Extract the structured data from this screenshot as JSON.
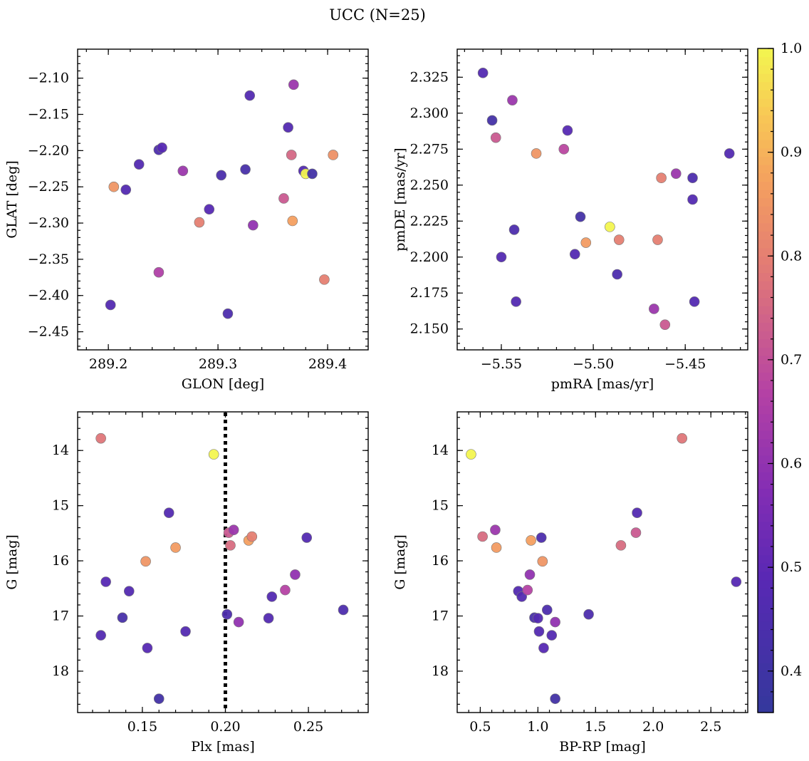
{
  "figure": {
    "title": "UCC (N=25)"
  },
  "colorbar": {
    "min": 0.36,
    "max": 1.0,
    "ticks": [
      "0.4",
      "0.5",
      "0.6",
      "0.7",
      "0.8",
      "0.9",
      "1.0"
    ],
    "tick_values": [
      0.4,
      0.5,
      0.6,
      0.7,
      0.8,
      0.9,
      1.0
    ],
    "colormap": "plasma"
  },
  "chart_data": [
    {
      "type": "scatter",
      "id": "glon-glat",
      "xlabel": "GLON [deg]",
      "ylabel": "GLAT [deg]",
      "xlim": [
        289.172,
        289.437
      ],
      "ylim": [
        -2.475,
        -2.06
      ],
      "y_inverted": false,
      "xticks": [
        289.2,
        289.3,
        289.4
      ],
      "xtick_labels": [
        "289.2",
        "289.3",
        "289.4"
      ],
      "yticks": [
        -2.1,
        -2.15,
        -2.2,
        -2.25,
        -2.3,
        -2.35,
        -2.4,
        -2.45
      ],
      "ytick_labels": [
        "−2.10",
        "−2.15",
        "−2.20",
        "−2.25",
        "−2.30",
        "−2.35",
        "−2.40",
        "−2.45"
      ],
      "points": [
        {
          "x": 289.202,
          "y": -2.413,
          "c": 0.47
        },
        {
          "x": 289.205,
          "y": -2.25,
          "c": 0.85
        },
        {
          "x": 289.216,
          "y": -2.254,
          "c": 0.47
        },
        {
          "x": 289.228,
          "y": -2.219,
          "c": 0.47
        },
        {
          "x": 289.246,
          "y": -2.199,
          "c": 0.45
        },
        {
          "x": 289.249,
          "y": -2.196,
          "c": 0.48
        },
        {
          "x": 289.246,
          "y": -2.368,
          "c": 0.66
        },
        {
          "x": 289.268,
          "y": -2.228,
          "c": 0.62
        },
        {
          "x": 289.283,
          "y": -2.299,
          "c": 0.8
        },
        {
          "x": 289.292,
          "y": -2.281,
          "c": 0.48
        },
        {
          "x": 289.303,
          "y": -2.234,
          "c": 0.44
        },
        {
          "x": 289.309,
          "y": -2.425,
          "c": 0.45
        },
        {
          "x": 289.325,
          "y": -2.226,
          "c": 0.43
        },
        {
          "x": 289.329,
          "y": -2.124,
          "c": 0.47
        },
        {
          "x": 289.332,
          "y": -2.303,
          "c": 0.6
        },
        {
          "x": 289.36,
          "y": -2.266,
          "c": 0.72
        },
        {
          "x": 289.364,
          "y": -2.168,
          "c": 0.47
        },
        {
          "x": 289.367,
          "y": -2.206,
          "c": 0.75
        },
        {
          "x": 289.368,
          "y": -2.297,
          "c": 0.87
        },
        {
          "x": 289.369,
          "y": -2.109,
          "c": 0.62
        },
        {
          "x": 289.378,
          "y": -2.228,
          "c": 0.47
        },
        {
          "x": 289.38,
          "y": -2.232,
          "c": 1.0
        },
        {
          "x": 289.386,
          "y": -2.232,
          "c": 0.41
        },
        {
          "x": 289.397,
          "y": -2.378,
          "c": 0.8
        },
        {
          "x": 289.405,
          "y": -2.206,
          "c": 0.84
        }
      ]
    },
    {
      "type": "scatter",
      "id": "pmra-pmde",
      "xlabel": "pmRA [mas/yr]",
      "ylabel": "pmDE [mas/yr]",
      "xlim": [
        -5.574,
        -5.416
      ],
      "ylim": [
        2.1355,
        2.3445
      ],
      "y_inverted": false,
      "xticks": [
        -5.55,
        -5.5,
        -5.45
      ],
      "xtick_labels": [
        "−5.55",
        "−5.50",
        "−5.45"
      ],
      "yticks": [
        2.15,
        2.175,
        2.2,
        2.225,
        2.25,
        2.275,
        2.3,
        2.325
      ],
      "ytick_labels": [
        "2.150",
        "2.175",
        "2.200",
        "2.225",
        "2.250",
        "2.275",
        "2.300",
        "2.325"
      ],
      "points": [
        {
          "x": -5.56,
          "y": 2.328,
          "c": 0.47
        },
        {
          "x": -5.555,
          "y": 2.295,
          "c": 0.42
        },
        {
          "x": -5.553,
          "y": 2.283,
          "c": 0.72
        },
        {
          "x": -5.55,
          "y": 2.2,
          "c": 0.47
        },
        {
          "x": -5.544,
          "y": 2.309,
          "c": 0.62
        },
        {
          "x": -5.543,
          "y": 2.219,
          "c": 0.45
        },
        {
          "x": -5.542,
          "y": 2.169,
          "c": 0.47
        },
        {
          "x": -5.531,
          "y": 2.272,
          "c": 0.85
        },
        {
          "x": -5.516,
          "y": 2.275,
          "c": 0.68
        },
        {
          "x": -5.514,
          "y": 2.288,
          "c": 0.48
        },
        {
          "x": -5.51,
          "y": 2.202,
          "c": 0.47
        },
        {
          "x": -5.507,
          "y": 2.228,
          "c": 0.42
        },
        {
          "x": -5.504,
          "y": 2.21,
          "c": 0.86
        },
        {
          "x": -5.491,
          "y": 2.221,
          "c": 1.0
        },
        {
          "x": -5.487,
          "y": 2.188,
          "c": 0.45
        },
        {
          "x": -5.486,
          "y": 2.212,
          "c": 0.8
        },
        {
          "x": -5.467,
          "y": 2.164,
          "c": 0.62
        },
        {
          "x": -5.465,
          "y": 2.212,
          "c": 0.8
        },
        {
          "x": -5.463,
          "y": 2.255,
          "c": 0.8
        },
        {
          "x": -5.461,
          "y": 2.153,
          "c": 0.72
        },
        {
          "x": -5.455,
          "y": 2.258,
          "c": 0.62
        },
        {
          "x": -5.446,
          "y": 2.255,
          "c": 0.45
        },
        {
          "x": -5.446,
          "y": 2.24,
          "c": 0.47
        },
        {
          "x": -5.445,
          "y": 2.169,
          "c": 0.47
        },
        {
          "x": -5.426,
          "y": 2.272,
          "c": 0.47
        }
      ]
    },
    {
      "type": "scatter",
      "id": "plx-g",
      "xlabel": "Plx [mas]",
      "ylabel": "G [mag]",
      "xlim": [
        0.111,
        0.286
      ],
      "ylim": [
        18.75,
        13.3
      ],
      "y_inverted": true,
      "vline": {
        "x": 0.2,
        "style": "dotted"
      },
      "xticks": [
        0.15,
        0.2,
        0.25
      ],
      "xtick_labels": [
        "0.15",
        "0.20",
        "0.25"
      ],
      "yticks": [
        14,
        15,
        16,
        17,
        18
      ],
      "ytick_labels": [
        "14",
        "15",
        "16",
        "17",
        "18"
      ],
      "points": [
        {
          "x": 0.125,
          "y": 13.78,
          "c": 0.78
        },
        {
          "x": 0.125,
          "y": 17.35,
          "c": 0.47
        },
        {
          "x": 0.128,
          "y": 16.38,
          "c": 0.48
        },
        {
          "x": 0.138,
          "y": 17.03,
          "c": 0.43
        },
        {
          "x": 0.142,
          "y": 16.55,
          "c": 0.47
        },
        {
          "x": 0.152,
          "y": 16.01,
          "c": 0.85
        },
        {
          "x": 0.153,
          "y": 17.58,
          "c": 0.48
        },
        {
          "x": 0.16,
          "y": 18.5,
          "c": 0.41
        },
        {
          "x": 0.166,
          "y": 15.13,
          "c": 0.47
        },
        {
          "x": 0.17,
          "y": 15.76,
          "c": 0.86
        },
        {
          "x": 0.176,
          "y": 17.28,
          "c": 0.47
        },
        {
          "x": 0.193,
          "y": 14.07,
          "c": 1.0
        },
        {
          "x": 0.201,
          "y": 16.97,
          "c": 0.45
        },
        {
          "x": 0.202,
          "y": 15.49,
          "c": 0.72
        },
        {
          "x": 0.203,
          "y": 15.72,
          "c": 0.76
        },
        {
          "x": 0.205,
          "y": 15.44,
          "c": 0.62
        },
        {
          "x": 0.208,
          "y": 17.11,
          "c": 0.6
        },
        {
          "x": 0.214,
          "y": 15.63,
          "c": 0.87
        },
        {
          "x": 0.216,
          "y": 15.56,
          "c": 0.8
        },
        {
          "x": 0.226,
          "y": 17.04,
          "c": 0.47
        },
        {
          "x": 0.228,
          "y": 16.65,
          "c": 0.47
        },
        {
          "x": 0.236,
          "y": 16.53,
          "c": 0.67
        },
        {
          "x": 0.242,
          "y": 16.25,
          "c": 0.6
        },
        {
          "x": 0.249,
          "y": 15.58,
          "c": 0.47
        },
        {
          "x": 0.271,
          "y": 16.89,
          "c": 0.45
        }
      ]
    },
    {
      "type": "scatter",
      "id": "bprp-g",
      "xlabel": "BP-RP [mag]",
      "ylabel": "G [mag]",
      "xlim": [
        0.3,
        2.82
      ],
      "ylim": [
        18.75,
        13.3
      ],
      "y_inverted": true,
      "xticks": [
        0.5,
        1.0,
        1.5,
        2.0,
        2.5
      ],
      "xtick_labels": [
        "0.5",
        "1.0",
        "1.5",
        "2.0",
        "2.5"
      ],
      "yticks": [
        14,
        15,
        16,
        17,
        18
      ],
      "ytick_labels": [
        "14",
        "15",
        "16",
        "17",
        "18"
      ],
      "points": [
        {
          "x": 0.42,
          "y": 14.07,
          "c": 1.0
        },
        {
          "x": 0.52,
          "y": 15.56,
          "c": 0.76
        },
        {
          "x": 0.63,
          "y": 15.44,
          "c": 0.62
        },
        {
          "x": 0.64,
          "y": 15.76,
          "c": 0.86
        },
        {
          "x": 0.83,
          "y": 16.55,
          "c": 0.47
        },
        {
          "x": 0.86,
          "y": 16.65,
          "c": 0.47
        },
        {
          "x": 0.91,
          "y": 16.53,
          "c": 0.67
        },
        {
          "x": 0.93,
          "y": 16.25,
          "c": 0.6
        },
        {
          "x": 0.94,
          "y": 15.63,
          "c": 0.87
        },
        {
          "x": 0.97,
          "y": 17.03,
          "c": 0.43
        },
        {
          "x": 1.0,
          "y": 17.04,
          "c": 0.47
        },
        {
          "x": 1.01,
          "y": 17.28,
          "c": 0.47
        },
        {
          "x": 1.03,
          "y": 15.58,
          "c": 0.45
        },
        {
          "x": 1.04,
          "y": 16.01,
          "c": 0.85
        },
        {
          "x": 1.05,
          "y": 17.58,
          "c": 0.48
        },
        {
          "x": 1.08,
          "y": 16.89,
          "c": 0.45
        },
        {
          "x": 1.12,
          "y": 17.35,
          "c": 0.47
        },
        {
          "x": 1.15,
          "y": 18.5,
          "c": 0.41
        },
        {
          "x": 1.15,
          "y": 17.11,
          "c": 0.6
        },
        {
          "x": 1.44,
          "y": 16.97,
          "c": 0.45
        },
        {
          "x": 1.72,
          "y": 15.72,
          "c": 0.76
        },
        {
          "x": 1.85,
          "y": 15.49,
          "c": 0.72
        },
        {
          "x": 1.86,
          "y": 15.13,
          "c": 0.47
        },
        {
          "x": 2.25,
          "y": 13.78,
          "c": 0.78
        },
        {
          "x": 2.72,
          "y": 16.38,
          "c": 0.48
        }
      ]
    }
  ]
}
